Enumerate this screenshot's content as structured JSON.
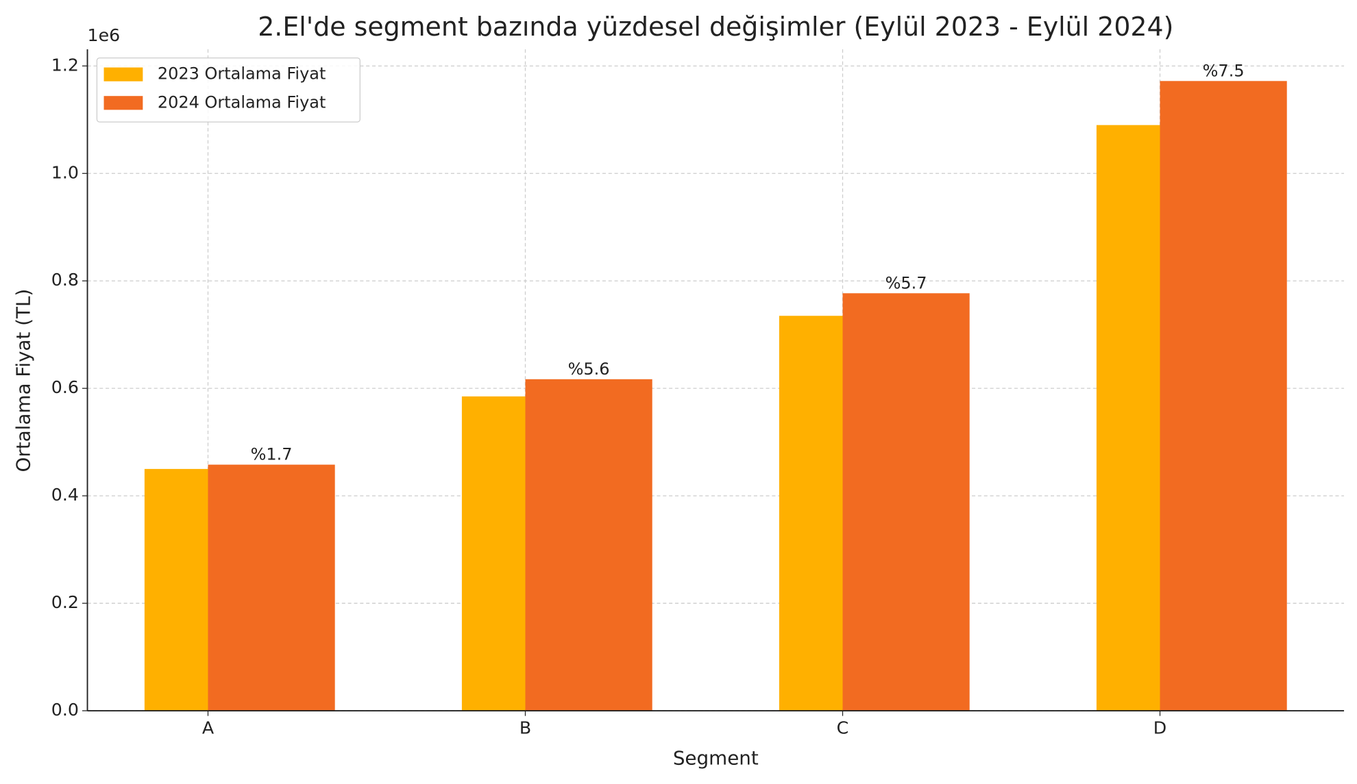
{
  "chart_data": {
    "type": "bar",
    "title": "2.El'de segment bazında yüzdesel değişimler (Eylül 2023 - Eylül 2024)",
    "x_label": "Segment",
    "y_label": "Ortalama Fiyat (TL)",
    "y_offset_label": "1e6",
    "categories": [
      "A",
      "B",
      "C",
      "D"
    ],
    "series": [
      {
        "name": "2023 Ortalama Fiyat",
        "color": "#FFB000",
        "values": [
          450000,
          585000,
          735000,
          1090000
        ]
      },
      {
        "name": "2024 Ortalama Fiyat",
        "color": "#F26B21",
        "values": [
          458000,
          617000,
          777000,
          1172000
        ]
      }
    ],
    "annotations": [
      "%1.7",
      "%5.6",
      "%5.7",
      "%7.5"
    ],
    "ylim": [
      0,
      1231000
    ],
    "yticks": [
      {
        "value": 0,
        "label": "0.0"
      },
      {
        "value": 200000,
        "label": "0.2"
      },
      {
        "value": 400000,
        "label": "0.4"
      },
      {
        "value": 600000,
        "label": "0.6"
      },
      {
        "value": 800000,
        "label": "0.8"
      },
      {
        "value": 1000000,
        "label": "1.0"
      },
      {
        "value": 1200000,
        "label": "1.2"
      }
    ],
    "grid": true,
    "legend": "upper-left"
  }
}
